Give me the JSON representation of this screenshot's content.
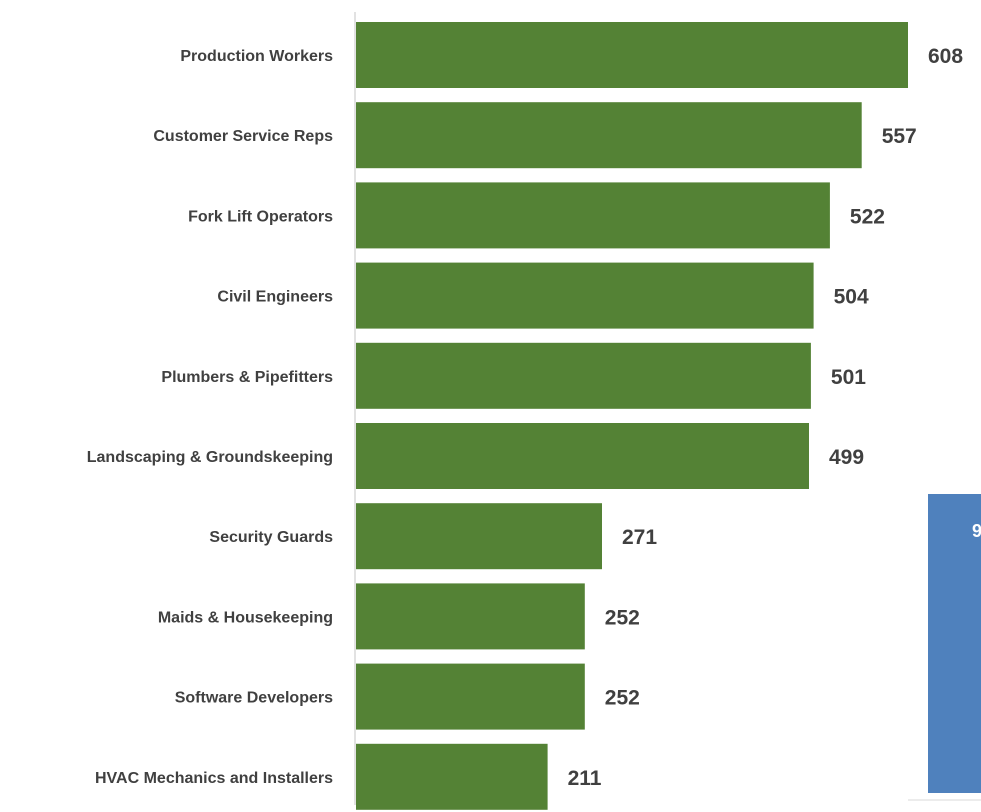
{
  "chart_data": {
    "type": "bar",
    "orientation": "horizontal",
    "title": "",
    "xlabel": "",
    "ylabel": "",
    "categories": [
      "Production Workers",
      "Customer Service Reps",
      "Fork Lift Operators",
      "Civil Engineers",
      "Plumbers & Pipefitters",
      "Landscaping & Groundskeeping",
      "Security Guards",
      "Maids & Housekeeping",
      "Software Developers",
      "HVAC Mechanics and Installers"
    ],
    "values": [
      608,
      557,
      522,
      504,
      501,
      499,
      271,
      252,
      252,
      211
    ],
    "data_labels": [
      "608",
      "557",
      "522",
      "504",
      "501",
      "499",
      "271",
      "252",
      "252",
      "211"
    ],
    "xlim": [
      0,
      608
    ],
    "grid": false,
    "legend": "none",
    "bar_color": "#548235",
    "label_color": "#404040",
    "axis_color": "#d9d9d9"
  },
  "partial_chart": {
    "bar_color": "#4f81bd",
    "visible_text": "9"
  }
}
